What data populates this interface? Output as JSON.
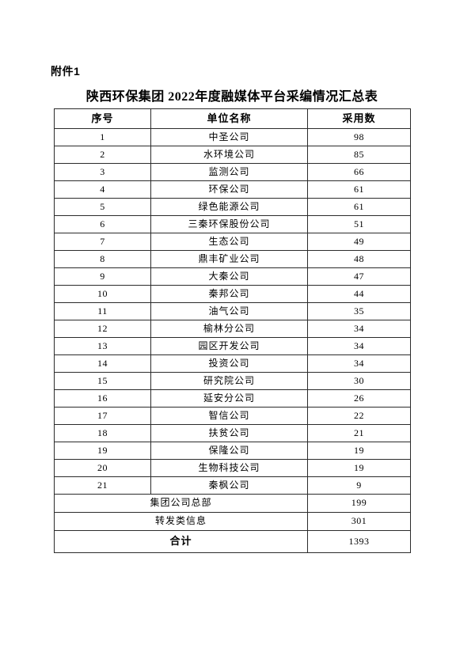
{
  "page": {
    "attachment_label": "附件1",
    "title": "陕西环保集团 2022年度融媒体平台采编情况汇总表"
  },
  "table": {
    "headers": [
      "序号",
      "单位名称",
      "采用数"
    ],
    "rows": [
      {
        "no": "1",
        "name": "中圣公司",
        "count": "98"
      },
      {
        "no": "2",
        "name": "水环境公司",
        "count": "85"
      },
      {
        "no": "3",
        "name": "监测公司",
        "count": "66"
      },
      {
        "no": "4",
        "name": "环保公司",
        "count": "61"
      },
      {
        "no": "5",
        "name": "绿色能源公司",
        "count": "61"
      },
      {
        "no": "6",
        "name": "三秦环保股份公司",
        "count": "51"
      },
      {
        "no": "7",
        "name": "生态公司",
        "count": "49"
      },
      {
        "no": "8",
        "name": "鼎丰矿业公司",
        "count": "48"
      },
      {
        "no": "9",
        "name": "大秦公司",
        "count": "47"
      },
      {
        "no": "10",
        "name": "秦邦公司",
        "count": "44"
      },
      {
        "no": "11",
        "name": "油气公司",
        "count": "35"
      },
      {
        "no": "12",
        "name": "榆林分公司",
        "count": "34"
      },
      {
        "no": "13",
        "name": "园区开发公司",
        "count": "34"
      },
      {
        "no": "14",
        "name": "投资公司",
        "count": "34"
      },
      {
        "no": "15",
        "name": "研究院公司",
        "count": "30"
      },
      {
        "no": "16",
        "name": "延安分公司",
        "count": "26"
      },
      {
        "no": "17",
        "name": "智信公司",
        "count": "22"
      },
      {
        "no": "18",
        "name": "扶贫公司",
        "count": "21"
      },
      {
        "no": "19",
        "name": "保隆公司",
        "count": "19"
      },
      {
        "no": "20",
        "name": "生物科技公司",
        "count": "19"
      },
      {
        "no": "21",
        "name": "秦枫公司",
        "count": "9"
      }
    ],
    "summary_rows": [
      {
        "label": "集团公司总部",
        "count": "199"
      },
      {
        "label": "转发类信息",
        "count": "301"
      }
    ],
    "total_row": {
      "label": "合计",
      "count": "1393"
    }
  }
}
